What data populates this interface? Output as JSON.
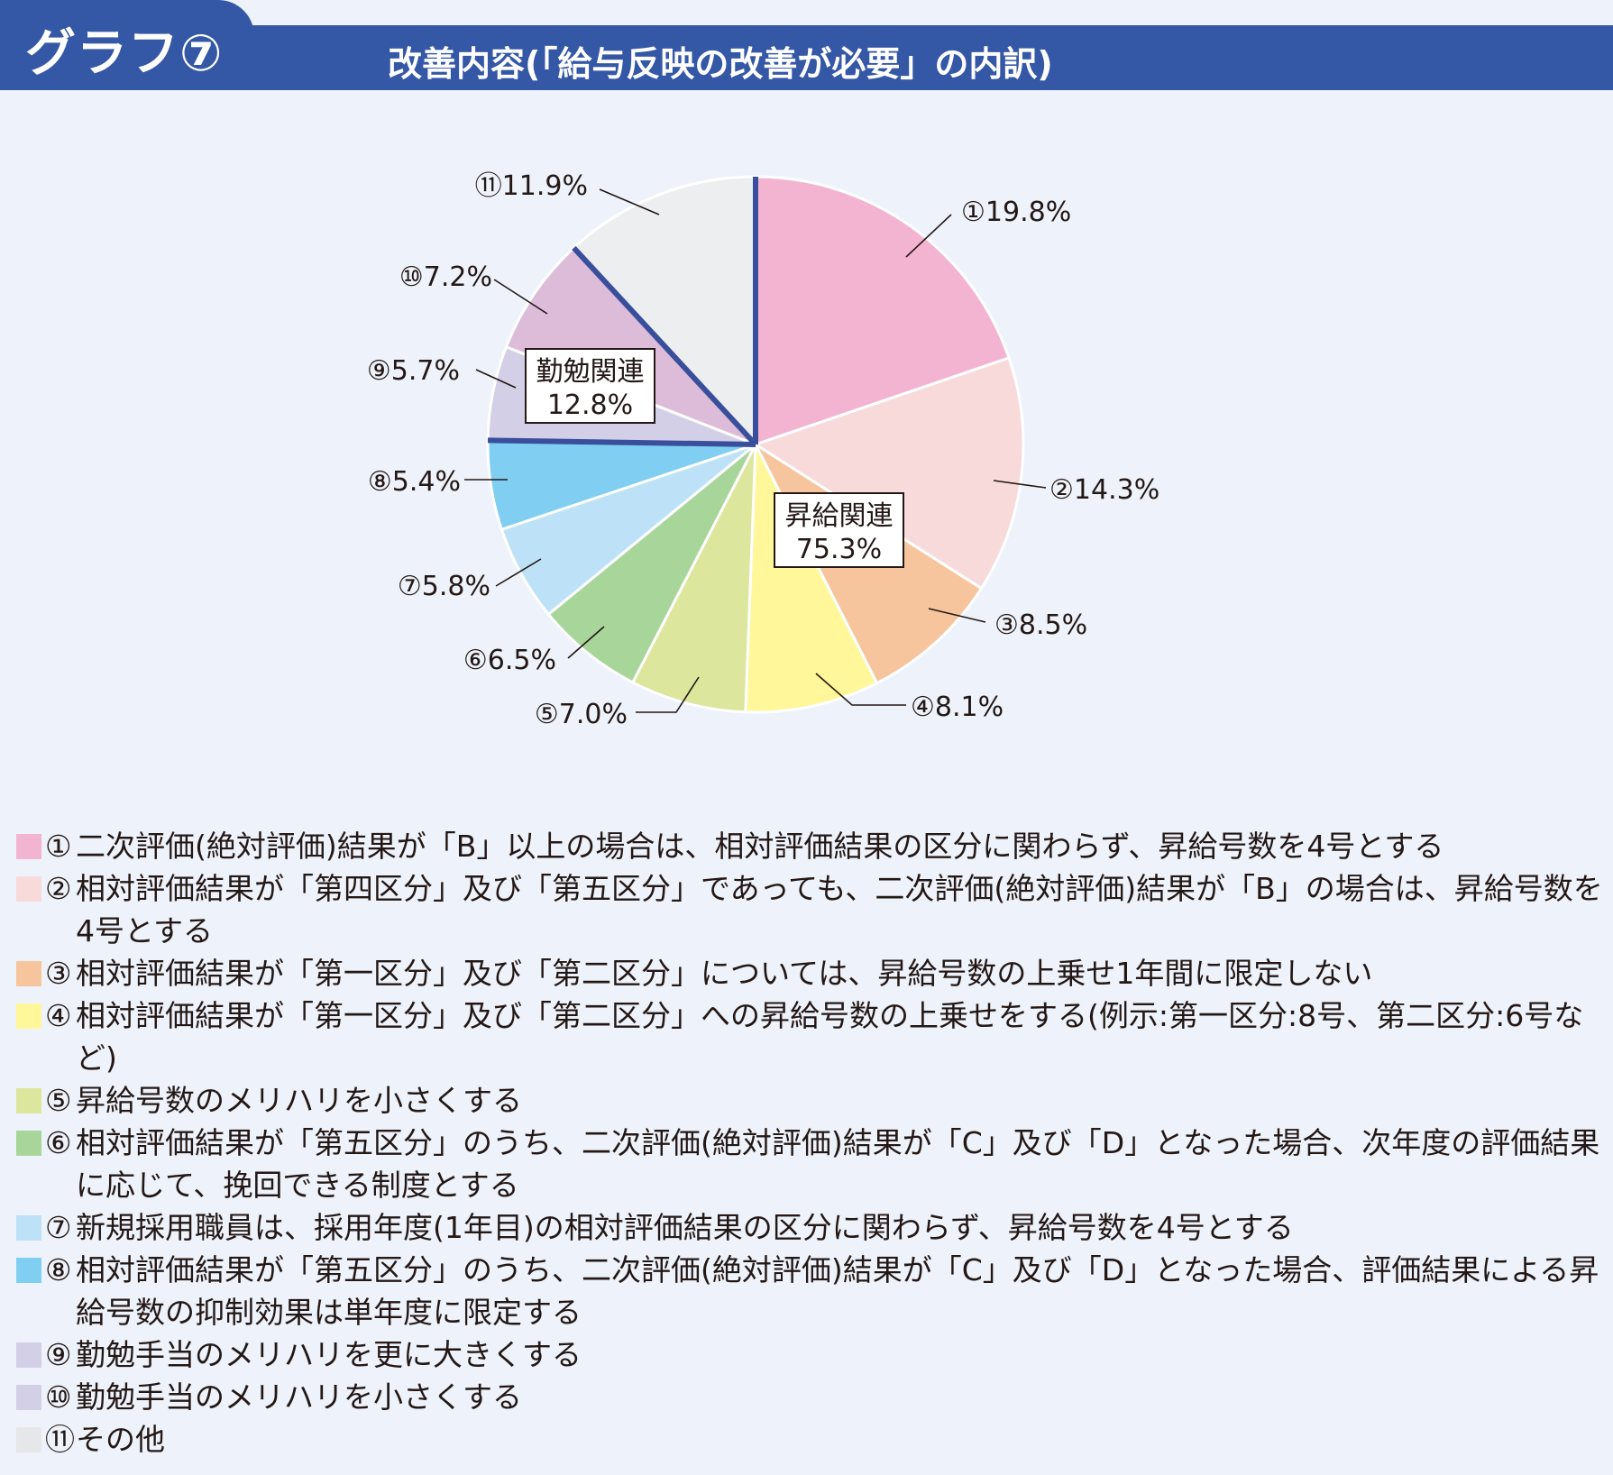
{
  "header": {
    "graph_label": "グラフ⑦",
    "title": "改善内容(「給与反映の改善が必要」の内訳)"
  },
  "chart_data": {
    "type": "pie",
    "title": "改善内容(「給与反映の改善が必要」の内訳)",
    "slices": [
      {
        "marker": "①",
        "value": 19.8,
        "label": "①19.8%",
        "color": "#f3b4d2"
      },
      {
        "marker": "②",
        "value": 14.3,
        "label": "②14.3%",
        "color": "#f9dada"
      },
      {
        "marker": "③",
        "value": 8.5,
        "label": "③8.5%",
        "color": "#f7c59d"
      },
      {
        "marker": "④",
        "value": 8.1,
        "label": "④8.1%",
        "color": "#fff79a"
      },
      {
        "marker": "⑤",
        "value": 7.0,
        "label": "⑤7.0%",
        "color": "#dce69c"
      },
      {
        "marker": "⑥",
        "value": 6.5,
        "label": "⑥6.5%",
        "color": "#a8d69a"
      },
      {
        "marker": "⑦",
        "value": 5.8,
        "label": "⑦5.8%",
        "color": "#bde2f7"
      },
      {
        "marker": "⑧",
        "value": 5.4,
        "label": "⑧5.4%",
        "color": "#80cff3"
      },
      {
        "marker": "⑨",
        "value": 5.7,
        "label": "⑨5.7%",
        "color": "#d3cfe6"
      },
      {
        "marker": "⑩",
        "value": 7.2,
        "label": "⑩7.2%",
        "color": "#dcbcd9"
      },
      {
        "marker": "⑪",
        "value": 11.9,
        "label": "⑪11.9%",
        "color": "#eceef0"
      }
    ],
    "groups": [
      {
        "name": "昇給関連",
        "value_label": "75.3%"
      },
      {
        "name": "勤勉関連",
        "value_label": "12.8%"
      }
    ],
    "border_color": "#3a4f9b"
  },
  "legend": [
    {
      "marker": "①",
      "text": "二次評価(絶対評価)結果が「B」以上の場合は、相対評価結果の区分に関わらず、昇給号数を4号とする",
      "color": "#f3b4d2"
    },
    {
      "marker": "②",
      "text": "相対評価結果が「第四区分」及び「第五区分」であっても、二次評価(絶対評価)結果が「B」の場合は、昇給号数を4号とする",
      "color": "#f9dada"
    },
    {
      "marker": "③",
      "text": "相対評価結果が「第一区分」及び「第二区分」については、昇給号数の上乗せ1年間に限定しない",
      "color": "#f7c59d"
    },
    {
      "marker": "④",
      "text": "相対評価結果が「第一区分」及び「第二区分」への昇給号数の上乗せをする(例示:第一区分:8号、第二区分:6号など)",
      "color": "#fff79a"
    },
    {
      "marker": "⑤",
      "text": "昇給号数のメリハリを小さくする",
      "color": "#dce69c"
    },
    {
      "marker": "⑥",
      "text": "相対評価結果が「第五区分」のうち、二次評価(絶対評価)結果が「C」及び「D」となった場合、次年度の評価結果に応じて、挽回できる制度とする",
      "color": "#a8d69a"
    },
    {
      "marker": "⑦",
      "text": "新規採用職員は、採用年度(1年目)の相対評価結果の区分に関わらず、昇給号数を4号とする",
      "color": "#bde2f7"
    },
    {
      "marker": "⑧",
      "text": "相対評価結果が「第五区分」のうち、二次評価(絶対評価)結果が「C」及び「D」となった場合、評価結果による昇給号数の抑制効果は単年度に限定する",
      "color": "#80cff3"
    },
    {
      "marker": "⑨",
      "text": "勤勉手当のメリハリを更に大きくする",
      "color": "#d3cfe6"
    },
    {
      "marker": "⑩",
      "text": "勤勉手当のメリハリを小さくする",
      "color": "#d3cfe6"
    },
    {
      "marker": "⑪",
      "text": "その他",
      "color": "#e6e7e9"
    }
  ]
}
